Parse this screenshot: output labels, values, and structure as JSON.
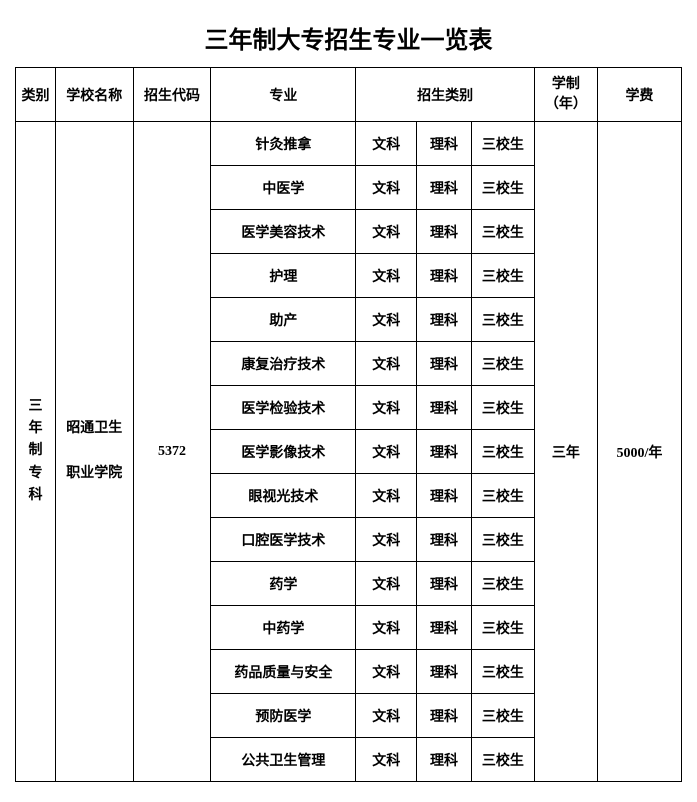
{
  "title": "三年制大专招生专业一览表",
  "headers": {
    "category": "类别",
    "school": "学校名称",
    "code": "招生代码",
    "major": "专业",
    "admission_type": "招生类别",
    "duration": "学制",
    "duration_unit": "（年）",
    "fee": "学费"
  },
  "category_label": [
    "三",
    "年",
    "制",
    "专",
    "科"
  ],
  "school_name": [
    "昭通卫生",
    "职业学院"
  ],
  "code": "5372",
  "duration_value": "三年",
  "fee_value": "5000/年",
  "admission_types": [
    "文科",
    "理科",
    "三校生"
  ],
  "majors": [
    "针灸推拿",
    "中医学",
    "医学美容技术",
    "护理",
    "助产",
    "康复治疗技术",
    "医学检验技术",
    "医学影像技术",
    "眼视光技术",
    "口腔医学技术",
    "药学",
    "中药学",
    "药品质量与安全",
    "预防医学",
    "公共卫生管理"
  ],
  "colors": {
    "background": "#ffffff",
    "border": "#000000",
    "text": "#000000"
  }
}
